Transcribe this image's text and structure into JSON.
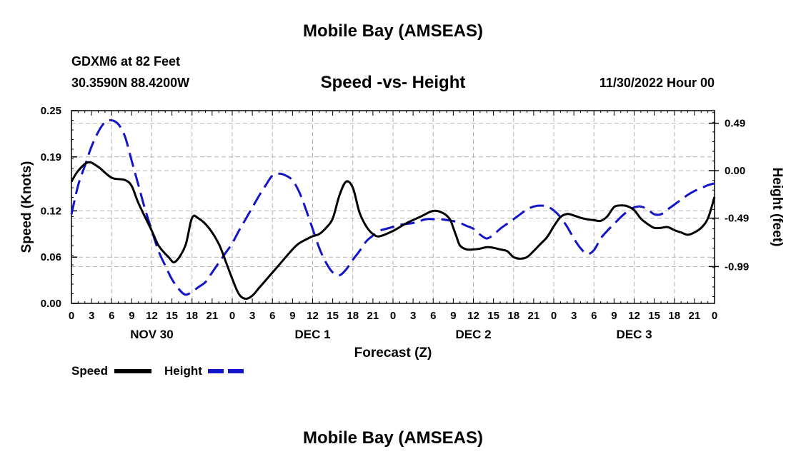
{
  "header": {
    "title": "Mobile Bay (AMSEAS)",
    "station": "GDXM6 at 82 Feet",
    "coords": "30.3590N  88.4200W",
    "subtitle": "Speed -vs- Height",
    "datetime": "11/30/2022 Hour 00"
  },
  "footer": {
    "title": "Mobile Bay (AMSEAS)"
  },
  "colors": {
    "speed": "#000000",
    "height": "#1414c8",
    "grid": "#b4b4b4"
  },
  "chart_data": {
    "type": "line",
    "xlabel": "Forecast (Z)",
    "ylabel": "Speed (Knots)",
    "y2label": "Height (feet)",
    "xlim": [
      0,
      96
    ],
    "ylim": [
      0,
      0.25
    ],
    "y2lim": [
      -1.37,
      0.62
    ],
    "x_tick_labels": [
      "0",
      "3",
      "6",
      "9",
      "12",
      "15",
      "18",
      "21",
      "0",
      "3",
      "6",
      "9",
      "12",
      "15",
      "18",
      "21",
      "0",
      "3",
      "6",
      "9",
      "12",
      "15",
      "18",
      "21",
      "0",
      "3",
      "6",
      "9",
      "12",
      "15",
      "18",
      "21",
      "0"
    ],
    "day_labels": [
      {
        "label": "NOV 30",
        "hour": 12
      },
      {
        "label": "DEC 1",
        "hour": 36
      },
      {
        "label": "DEC 2",
        "hour": 60
      },
      {
        "label": "DEC 3",
        "hour": 84
      }
    ],
    "y_ticks": [
      0.0,
      0.06,
      0.12,
      0.19,
      0.25
    ],
    "y_tick_labels": [
      "0.00",
      "0.06",
      "0.12",
      "0.19",
      "0.25"
    ],
    "y2_ticks": [
      -0.99,
      -0.49,
      0.0,
      0.49
    ],
    "y2_tick_labels": [
      "-0.99",
      "-0.49",
      "0.00",
      "0.49"
    ],
    "series": [
      {
        "name": "Speed",
        "axis": "left",
        "style": "solid",
        "x": [
          0,
          1,
          2.5,
          4,
          6,
          8,
          9,
          10,
          12,
          13,
          14.5,
          15.5,
          17,
          18,
          19,
          20.5,
          22,
          23,
          24,
          25,
          26,
          27,
          28,
          29,
          30,
          31,
          33,
          34,
          35.5,
          36,
          37,
          38,
          39,
          40,
          41,
          42,
          43,
          44,
          45,
          46,
          48,
          50,
          52,
          54,
          55.5,
          56.5,
          57,
          57.5,
          58,
          59,
          60,
          61,
          62,
          63,
          64,
          65,
          65.5,
          66,
          67,
          68,
          69,
          70,
          71,
          72,
          73,
          74,
          75,
          76,
          77,
          78,
          79,
          80,
          81,
          82,
          83,
          84,
          85,
          86,
          87,
          88,
          89,
          90,
          91,
          92,
          93,
          94,
          95,
          96
        ],
        "values": [
          0.158,
          0.172,
          0.183,
          0.177,
          0.163,
          0.16,
          0.152,
          0.13,
          0.094,
          0.075,
          0.06,
          0.054,
          0.075,
          0.111,
          0.11,
          0.098,
          0.077,
          0.055,
          0.032,
          0.012,
          0.006,
          0.01,
          0.02,
          0.03,
          0.04,
          0.05,
          0.07,
          0.078,
          0.085,
          0.087,
          0.09,
          0.098,
          0.11,
          0.14,
          0.158,
          0.15,
          0.118,
          0.1,
          0.09,
          0.087,
          0.094,
          0.104,
          0.112,
          0.12,
          0.117,
          0.109,
          0.098,
          0.086,
          0.075,
          0.07,
          0.07,
          0.071,
          0.073,
          0.072,
          0.07,
          0.068,
          0.064,
          0.06,
          0.058,
          0.06,
          0.068,
          0.077,
          0.086,
          0.1,
          0.112,
          0.116,
          0.114,
          0.111,
          0.109,
          0.108,
          0.107,
          0.113,
          0.125,
          0.127,
          0.126,
          0.121,
          0.11,
          0.103,
          0.098,
          0.098,
          0.099,
          0.095,
          0.092,
          0.089,
          0.092,
          0.098,
          0.11,
          0.138
        ]
      },
      {
        "name": "Height",
        "axis": "right",
        "style": "dashed",
        "x": [
          0,
          1,
          2,
          3,
          4,
          5,
          6,
          7,
          8,
          9,
          10,
          11,
          12,
          13,
          14,
          15,
          16,
          17,
          18,
          19,
          20,
          21,
          22,
          23,
          24,
          25,
          26,
          27,
          28,
          29,
          30,
          31,
          32,
          33,
          34,
          35,
          36,
          37,
          38,
          39,
          40,
          41,
          42,
          43,
          44,
          45,
          46,
          47,
          48,
          49,
          50,
          51,
          52,
          53,
          54,
          55,
          56,
          57,
          58,
          59,
          60,
          61,
          62,
          63,
          64,
          65,
          66,
          67,
          68,
          69,
          70,
          71,
          72,
          73,
          74,
          75,
          76,
          77,
          78,
          79,
          80,
          81,
          82,
          83,
          84,
          85,
          86,
          87,
          88,
          89,
          90,
          91,
          92,
          93,
          94,
          95,
          96
        ],
        "values": [
          -0.45,
          -0.15,
          0.05,
          0.25,
          0.4,
          0.5,
          0.52,
          0.48,
          0.35,
          0.1,
          -0.15,
          -0.4,
          -0.62,
          -0.83,
          -0.98,
          -1.12,
          -1.22,
          -1.28,
          -1.25,
          -1.2,
          -1.15,
          -1.05,
          -0.95,
          -0.85,
          -0.75,
          -0.62,
          -0.5,
          -0.38,
          -0.26,
          -0.15,
          -0.05,
          -0.03,
          -0.05,
          -0.1,
          -0.22,
          -0.4,
          -0.6,
          -0.8,
          -0.95,
          -1.05,
          -1.08,
          -1.02,
          -0.92,
          -0.83,
          -0.73,
          -0.67,
          -0.62,
          -0.6,
          -0.58,
          -0.56,
          -0.55,
          -0.54,
          -0.52,
          -0.5,
          -0.5,
          -0.5,
          -0.51,
          -0.52,
          -0.54,
          -0.57,
          -0.6,
          -0.66,
          -0.7,
          -0.66,
          -0.6,
          -0.55,
          -0.5,
          -0.45,
          -0.4,
          -0.37,
          -0.36,
          -0.37,
          -0.41,
          -0.48,
          -0.58,
          -0.7,
          -0.8,
          -0.86,
          -0.82,
          -0.7,
          -0.62,
          -0.55,
          -0.48,
          -0.42,
          -0.38,
          -0.37,
          -0.4,
          -0.45,
          -0.45,
          -0.4,
          -0.35,
          -0.3,
          -0.25,
          -0.21,
          -0.18,
          -0.15,
          -0.13
        ]
      }
    ],
    "legend": [
      {
        "label": "Speed",
        "style": "solid"
      },
      {
        "label": "Height",
        "style": "dashed"
      }
    ],
    "grid": true
  }
}
